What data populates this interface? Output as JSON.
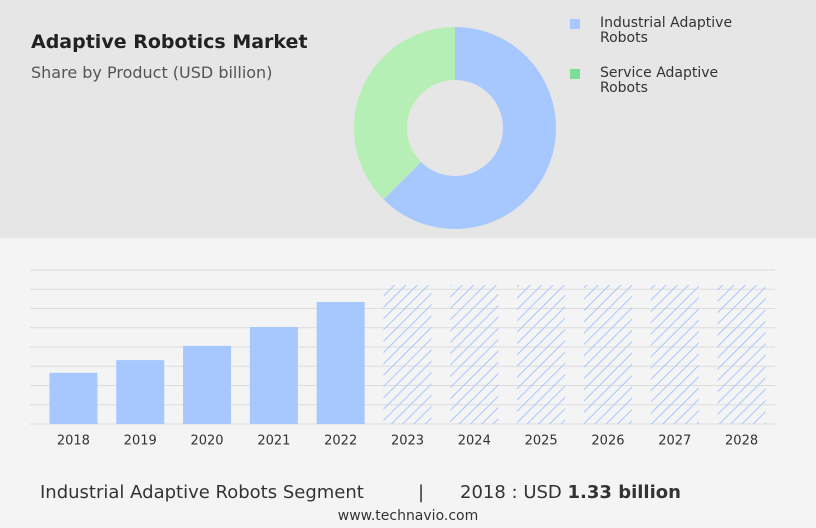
{
  "chart_data": [
    {
      "type": "donut",
      "title": "Adaptive Robotics Market",
      "subtitle": "Share by Product (USD billion)",
      "categories": [
        "Industrial Adaptive Robots",
        "Service Adaptive Robots"
      ],
      "values": [
        62.5,
        37.5
      ],
      "colors": [
        "#a6c8ff",
        "#b6efb6"
      ],
      "legend_colors": [
        "#a6c8ff",
        "#7ddc98"
      ],
      "legend": "top-right"
    },
    {
      "type": "bar",
      "categories": [
        "2018",
        "2019",
        "2020",
        "2021",
        "2022",
        "2023",
        "2024",
        "2025",
        "2026",
        "2027",
        "2028"
      ],
      "values": [
        1.33,
        1.66,
        2.03,
        2.52,
        3.17,
        null,
        null,
        null,
        null,
        null,
        null
      ],
      "color": "#a6c8ff",
      "forecast_color": "#a6c8ff",
      "ylim": [
        0,
        4
      ],
      "yticks": [
        0,
        0.5,
        1,
        1.5,
        2,
        2.5,
        3,
        3.5,
        4
      ],
      "grid": true
    }
  ],
  "footer": {
    "segment": "Industrial Adaptive Robots Segment",
    "year_label": "2018 : USD",
    "value_label": "1.33 billion",
    "source": "www.technavio.com"
  }
}
